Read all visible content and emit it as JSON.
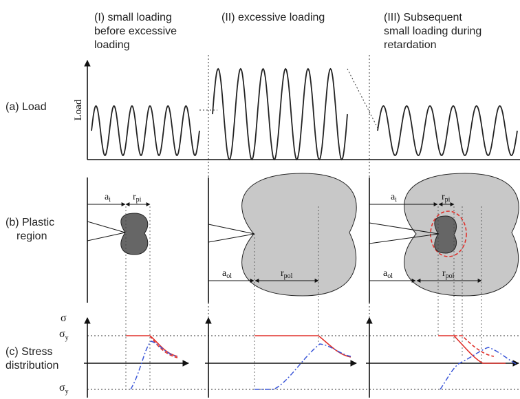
{
  "columns": [
    {
      "lines": [
        "(I) small loading",
        "before excessive",
        "loading"
      ]
    },
    {
      "lines": [
        "(II) excessive loading"
      ]
    },
    {
      "lines": [
        "(III) Subsequent",
        "small loading during",
        "retardation"
      ]
    }
  ],
  "rows": [
    {
      "lines": [
        "(a) Load"
      ]
    },
    {
      "lines": [
        "(b) Plastic",
        "region"
      ]
    },
    {
      "lines": [
        "(c) Stress",
        "distribution"
      ]
    }
  ],
  "load_axis_label": "Load",
  "plastic_labels": {
    "panel1": {
      "a": {
        "main": "a",
        "sub": "i"
      },
      "r": {
        "main": "r",
        "sub": "pi"
      }
    },
    "panel2": {
      "a": {
        "main": "a",
        "sub": "ol"
      },
      "r": {
        "main": "r",
        "sub": "pol"
      }
    },
    "panel3": {
      "a_top": {
        "main": "a",
        "sub": "i"
      },
      "r_top": {
        "main": "r",
        "sub": "pi"
      },
      "a_bottom": {
        "main": "a",
        "sub": "ol"
      },
      "r_bottom": {
        "main": "r",
        "sub": "pol"
      }
    }
  },
  "stress_labels": {
    "sigma": "σ",
    "sigma_y_top": {
      "main": "σ",
      "sub": "y"
    },
    "sigma_y_bottom": {
      "main": "σ",
      "sub": "y"
    }
  }
}
